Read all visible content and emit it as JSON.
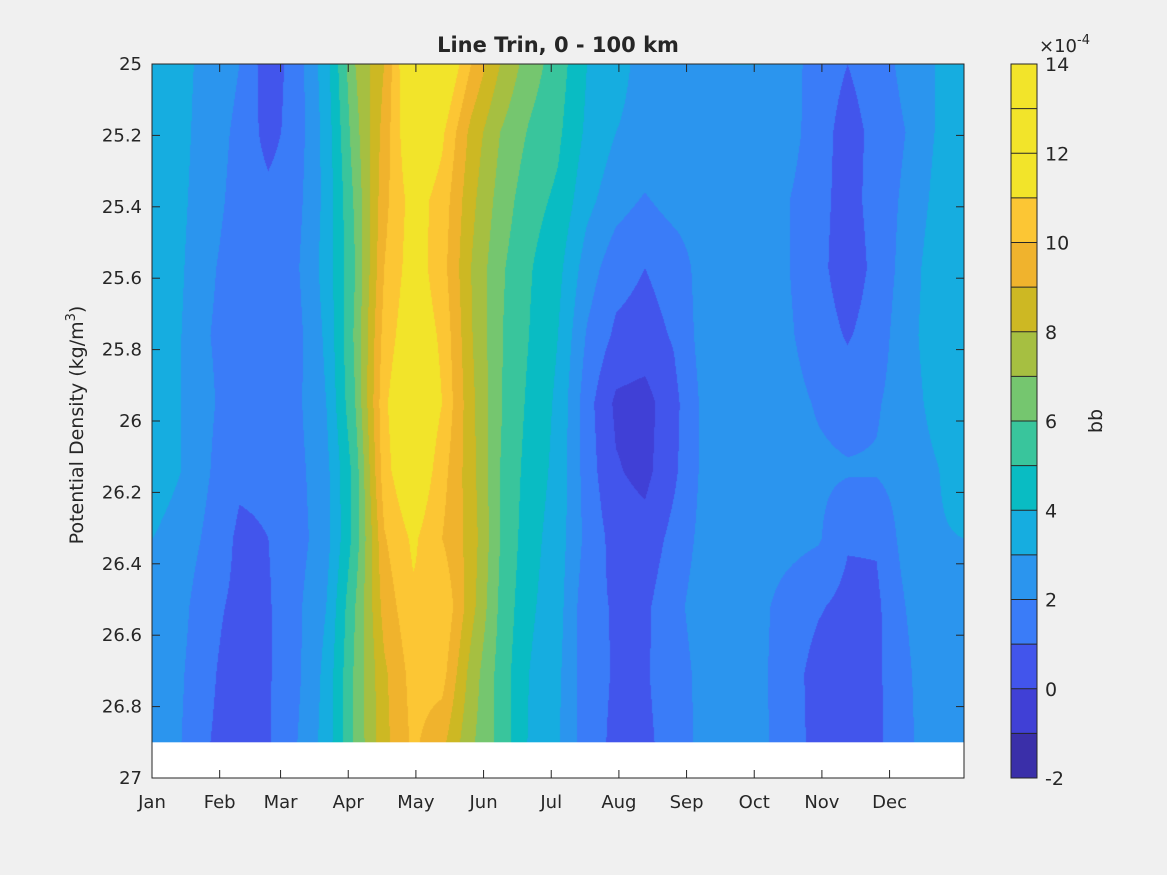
{
  "chart_data": {
    "type": "heatmap",
    "title": "Line Trin, 0 - 100 km",
    "ylabel_main": "Potential Density (kg/m",
    "ylabel_sup": "3",
    "ylabel_close": ")",
    "colorbar_label": "bb",
    "colorbar_exponent_prefix": "×10",
    "colorbar_exponent": "-4",
    "x_ticks": [
      "Jan",
      "Feb",
      "Mar",
      "Apr",
      "May",
      "Jun",
      "Jul",
      "Aug",
      "Sep",
      "Oct",
      "Nov",
      "Dec"
    ],
    "x_tick_positions": [
      0,
      1,
      1.9,
      2.9,
      3.9,
      4.9,
      5.9,
      6.9,
      7.9,
      8.9,
      9.9,
      10.9
    ],
    "xlim": [
      0,
      12
    ],
    "y_ticks": [
      "25",
      "25.2",
      "25.4",
      "25.6",
      "25.8",
      "26",
      "26.2",
      "26.4",
      "26.6",
      "26.8",
      "27"
    ],
    "y_tick_values": [
      25,
      25.2,
      25.4,
      25.6,
      25.8,
      26,
      26.2,
      26.4,
      26.6,
      26.8,
      27
    ],
    "ylim": [
      25,
      27
    ],
    "y_reversed": true,
    "data_ymax": 26.9,
    "colorbar_ticks": [
      "-2",
      "0",
      "2",
      "4",
      "6",
      "8",
      "10",
      "12",
      "14"
    ],
    "colorbar_tick_values": [
      -2,
      0,
      2,
      4,
      6,
      8,
      10,
      12,
      14
    ],
    "clim": [
      -2,
      14
    ],
    "level_step": 1,
    "level_colors": [
      "#3a2fa9",
      "#4040d6",
      "#4255ec",
      "#3a7cf8",
      "#2b95ee",
      "#16ade0",
      "#09bcc3",
      "#39c59c",
      "#75c66f",
      "#a6bf41",
      "#cdb823",
      "#f0b32d",
      "#fcc634",
      "#f2e42a",
      "#f2e42a",
      "#f2e42a"
    ],
    "grid": false,
    "values": [
      [
        3.5,
        3.3,
        2.6,
        2.0,
        0.4,
        1.5,
        3.6,
        7.0,
        9.0,
        12.8,
        12.5,
        10.0,
        8.0,
        6.5,
        5.5,
        4.0,
        3.2,
        2.8,
        2.8,
        2.9,
        3.0,
        3.0,
        2.4,
        1.5,
        1.0,
        1.5,
        2.3,
        3.0,
        3.0
      ],
      [
        3.5,
        3.3,
        2.4,
        1.8,
        0.6,
        1.5,
        3.4,
        6.6,
        9.4,
        12.3,
        11.2,
        8.7,
        7.0,
        5.9,
        5.2,
        3.8,
        3.0,
        2.8,
        2.8,
        2.5,
        2.2,
        2.3,
        2.4,
        1.4,
        0.6,
        1.3,
        2.0,
        3.0,
        3.0
      ],
      [
        3.5,
        3.2,
        2.3,
        1.7,
        1.3,
        1.7,
        3.3,
        6.2,
        9.7,
        11.5,
        10.6,
        8.3,
        6.6,
        5.4,
        4.8,
        3.3,
        2.4,
        1.9,
        2.4,
        2.5,
        2.2,
        2.0,
        2.0,
        1.3,
        0.6,
        1.4,
        2.2,
        3.2,
        3.5
      ],
      [
        3.4,
        3.1,
        2.1,
        1.6,
        1.5,
        1.9,
        3.4,
        6.0,
        10.0,
        11.6,
        10.4,
        8.0,
        6.2,
        5.1,
        4.3,
        2.5,
        1.4,
        1.0,
        1.4,
        2.4,
        2.3,
        2.2,
        2.0,
        1.3,
        0.4,
        1.3,
        2.4,
        3.5,
        3.9
      ],
      [
        3.6,
        3.0,
        2.0,
        1.6,
        1.4,
        1.7,
        3.2,
        6.2,
        10.4,
        11.9,
        10.8,
        8.1,
        6.1,
        5.0,
        4.0,
        1.9,
        0.8,
        0.6,
        1.1,
        2.4,
        2.4,
        2.2,
        2.1,
        1.5,
        0.9,
        1.5,
        2.6,
        3.5,
        3.5
      ],
      [
        3.8,
        3.0,
        2.1,
        1.5,
        1.3,
        1.8,
        3.0,
        6.0,
        10.8,
        12.4,
        11.0,
        8.3,
        6.1,
        4.8,
        3.8,
        1.4,
        -0.2,
        -0.4,
        0.7,
        2.2,
        2.4,
        2.3,
        2.3,
        1.9,
        1.6,
        1.9,
        2.5,
        3.3,
        3.4
      ],
      [
        3.5,
        3.0,
        2.0,
        1.2,
        1.2,
        1.7,
        2.7,
        5.4,
        10.6,
        12.2,
        10.4,
        8.4,
        6.0,
        4.6,
        3.7,
        1.5,
        0.1,
        -0.3,
        0.8,
        2.2,
        2.5,
        2.4,
        2.4,
        2.2,
        2.1,
        2.1,
        2.4,
        2.9,
        3.5
      ],
      [
        3.0,
        2.6,
        1.7,
        0.8,
        1.0,
        1.6,
        2.6,
        5.4,
        9.9,
        11.2,
        10.0,
        8.6,
        6.0,
        4.4,
        3.5,
        1.7,
        0.6,
        0.4,
        1.3,
        2.3,
        2.4,
        2.4,
        2.3,
        2.1,
        1.1,
        1.1,
        2.4,
        2.9,
        3.0
      ],
      [
        2.7,
        2.3,
        1.2,
        0.8,
        0.9,
        1.8,
        3.0,
        6.0,
        9.4,
        10.8,
        11.0,
        8.4,
        5.8,
        4.2,
        3.4,
        1.3,
        0.9,
        0.8,
        1.7,
        2.5,
        2.2,
        2.2,
        1.6,
        1.1,
        0.7,
        0.8,
        2.0,
        2.8,
        2.8
      ],
      [
        2.5,
        2.1,
        1.1,
        0.6,
        0.9,
        1.8,
        3.3,
        6.2,
        8.8,
        10.4,
        10.4,
        7.6,
        5.6,
        4.0,
        3.2,
        1.4,
        0.9,
        0.9,
        1.5,
        2.3,
        2.1,
        2.2,
        1.4,
        0.6,
        0.6,
        0.8,
        1.8,
        2.7,
        2.7
      ],
      [
        2.5,
        2.0,
        1.0,
        0.6,
        0.9,
        2.0,
        3.4,
        6.2,
        8.7,
        10.2,
        9.3,
        7.2,
        5.7,
        3.9,
        3.1,
        1.4,
        0.8,
        0.8,
        1.4,
        2.3,
        2.3,
        2.2,
        1.5,
        0.6,
        0.6,
        0.8,
        1.7,
        2.7,
        2.7
      ]
    ]
  }
}
